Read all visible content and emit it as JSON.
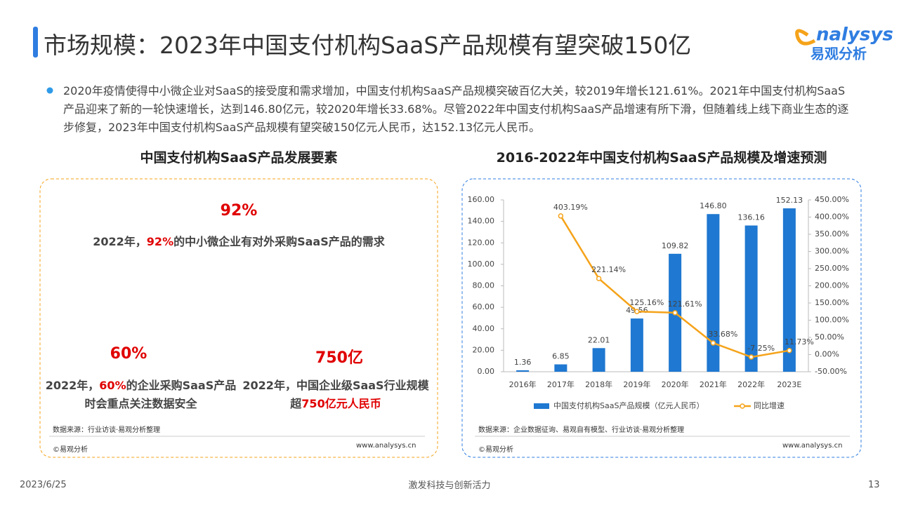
{
  "header": {
    "title": "市场规模：2023年中国支付机构SaaS产品规模有望突破150亿"
  },
  "logo": {
    "wordmark": "nalysys",
    "name": "易观分析"
  },
  "bullet": "2020年疫情使得中小微企业对SaaS的接受度和需求增加，中国支付机构SaaS产品规模突破百亿大关，较2019年增长121.61%。2021年中国支付机构SaaS产品迎来了新的一轮快速增长，达到146.80亿元，较2020年增长33.68%。尽管2022年中国支付机构SaaS产品增速有所下滑，但随着线上线下商业生态的逐步修复，2023年中国支付机构SaaS产品规模有望突破150亿元人民币，达152.13亿元人民币。",
  "left_panel": {
    "title": "中国支付机构SaaS产品发展要素",
    "items": [
      {
        "figure": "92%",
        "text": [
          "2022年，",
          "92%",
          "的中小微企业有对外采购SaaS产品的需求"
        ]
      },
      {
        "figure": "60%",
        "text": [
          "2022年，",
          "60%",
          "的企业采购SaaS产品时会重点关注数据安全"
        ]
      },
      {
        "figure": "750亿",
        "text": [
          "2022年，中国企业级SaaS行业规模超",
          "750亿元人民币"
        ]
      }
    ],
    "source": "数据来源：行业访谈·易观分析整理",
    "copyright": "©易观分析",
    "url": "www.analysys.cn"
  },
  "chart_data": {
    "type": "bar",
    "title": "2016-2022年中国支付机构SaaS产品规模及增速预测",
    "categories": [
      "2016年",
      "2017年",
      "2018年",
      "2019年",
      "2020年",
      "2021年",
      "2022年",
      "2023E"
    ],
    "series": [
      {
        "name": "中国支付机构SaaS产品规模（亿元人民币）",
        "type": "bar",
        "color": "#1f78d1",
        "values": [
          1.36,
          6.85,
          22.01,
          49.56,
          109.82,
          146.8,
          136.16,
          152.13
        ],
        "value_labels": [
          "1.36",
          "6.85",
          "22.01",
          "49.56",
          "109.82",
          "146.80",
          "136.16",
          "152.13"
        ]
      },
      {
        "name": "同比增速",
        "type": "line",
        "axis": "y2",
        "color": "#f5a31a",
        "values": [
          null,
          403.19,
          221.14,
          125.16,
          121.61,
          33.68,
          -7.25,
          11.73
        ],
        "value_labels": [
          null,
          "403.19%",
          "221.14%",
          "125.16%",
          "121.61%",
          "33.68%",
          "-7.25%",
          "11.73%"
        ]
      }
    ],
    "ylim": [
      0,
      160
    ],
    "yticks": [
      {
        "value": 0,
        "label": "0.00"
      },
      {
        "value": 20,
        "label": "20.00"
      },
      {
        "value": 40,
        "label": "40.00"
      },
      {
        "value": 60,
        "label": "60.00"
      },
      {
        "value": 80,
        "label": "80.00"
      },
      {
        "value": 100,
        "label": "100.00"
      },
      {
        "value": 120,
        "label": "120.00"
      },
      {
        "value": 140,
        "label": "140.00"
      },
      {
        "value": 160,
        "label": "160.00"
      }
    ],
    "y2lim": [
      -50,
      450
    ],
    "y2ticks": [
      {
        "value": -50,
        "label": "-50.00%"
      },
      {
        "value": 0,
        "label": "0.00%"
      },
      {
        "value": 50,
        "label": "50.00%"
      },
      {
        "value": 100,
        "label": "100.00%"
      },
      {
        "value": 150,
        "label": "150.00%"
      },
      {
        "value": 200,
        "label": "200.00%"
      },
      {
        "value": 250,
        "label": "250.00%"
      },
      {
        "value": 300,
        "label": "300.00%"
      },
      {
        "value": 350,
        "label": "350.00%"
      },
      {
        "value": 400,
        "label": "400.00%"
      },
      {
        "value": 450,
        "label": "450.00%"
      }
    ],
    "grid": false,
    "legend": "bottom",
    "source": "数据来源：企业数据征询、易观自有模型、行业访谈·易观分析整理",
    "copyright": "©易观分析",
    "url": "www.analysys.cn"
  },
  "footer": {
    "date": "2023/6/25",
    "slogan": "激发科技与创新活力",
    "page": "13"
  }
}
